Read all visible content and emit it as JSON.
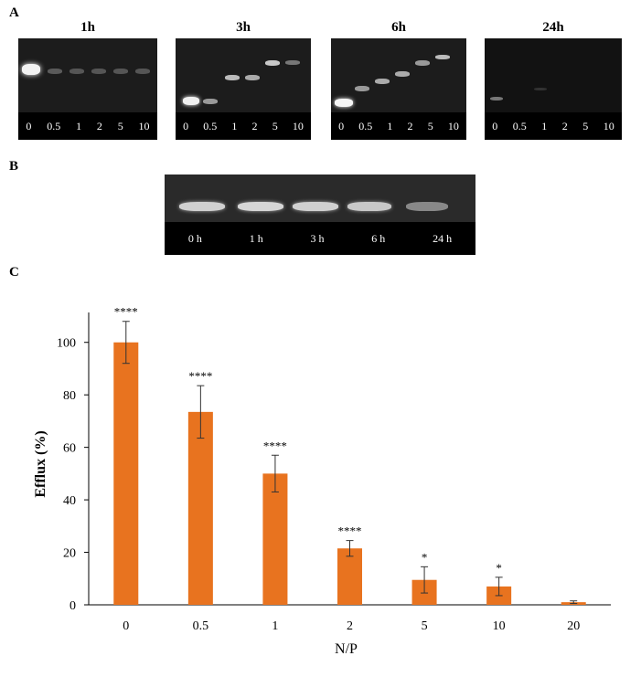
{
  "panels": {
    "a": "A",
    "b": "B",
    "c": "C"
  },
  "gels_a": [
    {
      "title": "1h",
      "lanes": [
        "0",
        "0.5",
        "1",
        "2",
        "5",
        "10"
      ]
    },
    {
      "title": "3h",
      "lanes": [
        "0",
        "0.5",
        "1",
        "2",
        "5",
        "10"
      ]
    },
    {
      "title": "6h",
      "lanes": [
        "0",
        "0.5",
        "1",
        "2",
        "5",
        "10"
      ]
    },
    {
      "title": "24h",
      "lanes": [
        "0",
        "0.5",
        "1",
        "2",
        "5",
        "10"
      ]
    }
  ],
  "gel_b": {
    "lanes": [
      "0 h",
      "1 h",
      "3 h",
      "6 h",
      "24 h"
    ]
  },
  "chart_data": {
    "type": "bar",
    "categories": [
      "0",
      "0.5",
      "1",
      "2",
      "5",
      "10",
      "20"
    ],
    "values": [
      100,
      73.5,
      50,
      21.5,
      9.5,
      7,
      1
    ],
    "errors": [
      8,
      10,
      7,
      3,
      5,
      3.5,
      0.5
    ],
    "significance": [
      "****",
      "****",
      "****",
      "****",
      "*",
      "*",
      ""
    ],
    "yticks": [
      0,
      20,
      40,
      60,
      80,
      100
    ],
    "ylim": [
      0,
      110
    ],
    "xlabel": "N/P",
    "ylabel": "Efflux (%)",
    "bar_color": "#e8731f"
  }
}
